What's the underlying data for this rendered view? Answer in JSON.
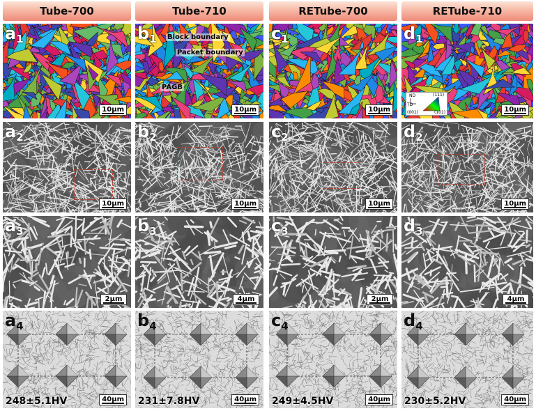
{
  "columns": [
    {
      "title": "Tube-700"
    },
    {
      "title": "Tube-710"
    },
    {
      "title": "RETube-700"
    },
    {
      "title": "RETube-710"
    }
  ],
  "rows": [
    {
      "letters": [
        "a",
        "b",
        "c",
        "d"
      ],
      "sub": "1",
      "scales": [
        "10μm",
        "10μm",
        "10μm",
        "10μm"
      ]
    },
    {
      "letters": [
        "a",
        "b",
        "c",
        "d"
      ],
      "sub": "2",
      "scales": [
        "10μm",
        "10μm",
        "10μm",
        "10μm"
      ]
    },
    {
      "letters": [
        "a",
        "b",
        "c",
        "d"
      ],
      "sub": "3",
      "scales": [
        "2μm",
        "4μm",
        "2μm",
        "4μm"
      ]
    },
    {
      "letters": [
        "a",
        "b",
        "c",
        "d"
      ],
      "sub": "4",
      "scales": [
        "40μm",
        "40μm",
        "40μm",
        "40μm"
      ]
    }
  ],
  "hardness": [
    "248±5.1HV",
    "231±7.8HV",
    "249±4.5HV",
    "230±5.2HV"
  ],
  "annotations": {
    "block_boundary": "Block boundary",
    "packet_boundary": "Packet boundary",
    "pagb": "PAGB"
  },
  "ipf_legend": {
    "nd": "ND",
    "td": "TD",
    "p111": "(111)",
    "p001": "(001)",
    "p101": "(101)"
  },
  "colors": {
    "header_top": "#fbe3d6",
    "header_bottom": "#ee8a78",
    "dash_box": "#c0392b"
  }
}
